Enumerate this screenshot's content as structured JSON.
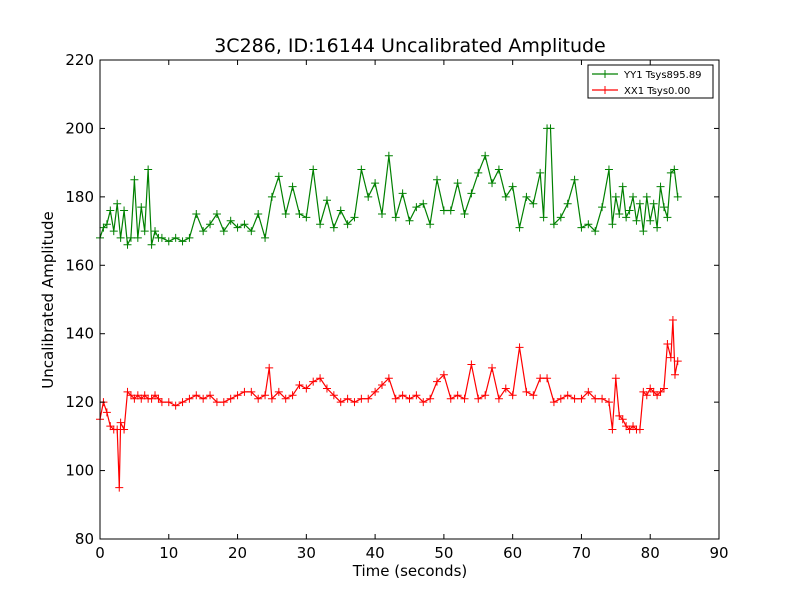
{
  "chart_data": {
    "type": "line",
    "title": "3C286, ID:16144 Uncalibrated Amplitude",
    "xlabel": "Time (seconds)",
    "ylabel": "Uncalibrated Amplitude",
    "xlim": [
      0,
      90
    ],
    "ylim": [
      80,
      220
    ],
    "xticks": [
      "0",
      "10",
      "20",
      "30",
      "40",
      "50",
      "60",
      "70",
      "80",
      "90"
    ],
    "yticks": [
      "80",
      "100",
      "120",
      "140",
      "160",
      "180",
      "200",
      "220"
    ],
    "grid": false,
    "legend_position": "top-right",
    "marker": "plus",
    "series": [
      {
        "name": "YY1 Tsys895.89",
        "color": "#008000",
        "x": [
          0.0,
          0.5,
          1.0,
          1.5,
          2.0,
          2.5,
          3.0,
          3.5,
          4.0,
          4.5,
          5.0,
          5.5,
          6.0,
          6.5,
          7.0,
          7.5,
          8.0,
          8.5,
          9.0,
          10.0,
          11.0,
          12.0,
          13.0,
          14.0,
          15.0,
          16.0,
          17.0,
          18.0,
          19.0,
          20.0,
          21.0,
          22.0,
          23.0,
          24.0,
          25.0,
          26.0,
          27.0,
          28.0,
          29.0,
          30.0,
          31.0,
          32.0,
          33.0,
          34.0,
          35.0,
          36.0,
          37.0,
          38.0,
          39.0,
          40.0,
          41.0,
          42.0,
          43.0,
          44.0,
          45.0,
          46.0,
          47.0,
          48.0,
          49.0,
          50.0,
          51.0,
          52.0,
          53.0,
          54.0,
          55.0,
          56.0,
          57.0,
          58.0,
          59.0,
          60.0,
          61.0,
          62.0,
          63.0,
          64.0,
          64.5,
          65.0,
          65.5,
          66.0,
          67.0,
          68.0,
          69.0,
          70.0,
          71.0,
          72.0,
          73.0,
          74.0,
          74.5,
          75.0,
          75.5,
          76.0,
          76.5,
          77.0,
          77.5,
          78.0,
          78.5,
          79.0,
          79.5,
          80.0,
          80.5,
          81.0,
          81.5,
          82.0,
          82.5,
          83.0,
          83.5,
          84.0
        ],
        "values": [
          168,
          171,
          172,
          176,
          170,
          178,
          168,
          176,
          166,
          168,
          185,
          168,
          177,
          170,
          188,
          166,
          170,
          168,
          168,
          167,
          168,
          167,
          168,
          175,
          170,
          172,
          175,
          170,
          173,
          171,
          172,
          170,
          175,
          168,
          180,
          186,
          175,
          183,
          175,
          174,
          188,
          172,
          179,
          171,
          176,
          172,
          174,
          188,
          180,
          184,
          175,
          192,
          174,
          181,
          173,
          177,
          178,
          172,
          185,
          176,
          176,
          184,
          175,
          181,
          187,
          192,
          184,
          188,
          180,
          183,
          171,
          180,
          178,
          187,
          174,
          200,
          200,
          172,
          174,
          178,
          185,
          171,
          172,
          170,
          177,
          188,
          172,
          180,
          175,
          183,
          174,
          176,
          180,
          173,
          178,
          170,
          180,
          173,
          178,
          171,
          183,
          177,
          174,
          187,
          188,
          180
        ]
      },
      {
        "name": "XX1 Tsys0.00",
        "color": "#ff0000",
        "x": [
          0.0,
          0.5,
          1.0,
          1.5,
          2.0,
          2.5,
          2.8,
          3.0,
          3.5,
          4.0,
          4.5,
          5.0,
          5.5,
          6.0,
          6.5,
          7.0,
          7.5,
          8.0,
          8.5,
          9.0,
          10.0,
          11.0,
          12.0,
          13.0,
          14.0,
          15.0,
          16.0,
          17.0,
          18.0,
          19.0,
          20.0,
          21.0,
          22.0,
          23.0,
          24.0,
          24.6,
          25.0,
          26.0,
          27.0,
          28.0,
          29.0,
          30.0,
          31.0,
          32.0,
          33.0,
          34.0,
          35.0,
          36.0,
          37.0,
          38.0,
          39.0,
          40.0,
          41.0,
          42.0,
          43.0,
          44.0,
          45.0,
          46.0,
          47.0,
          48.0,
          49.0,
          50.0,
          51.0,
          52.0,
          53.0,
          54.0,
          55.0,
          56.0,
          57.0,
          58.0,
          59.0,
          60.0,
          61.0,
          62.0,
          63.0,
          64.0,
          65.0,
          66.0,
          67.0,
          68.0,
          69.0,
          70.0,
          71.0,
          72.0,
          73.0,
          74.0,
          74.5,
          75.0,
          75.5,
          76.0,
          76.5,
          77.0,
          77.5,
          78.0,
          78.5,
          79.0,
          79.5,
          80.0,
          80.5,
          81.0,
          81.5,
          82.0,
          82.5,
          83.0,
          83.3,
          83.6,
          84.0
        ],
        "values": [
          115,
          120,
          117,
          113,
          112,
          112,
          95,
          114,
          112,
          123,
          122,
          121,
          122,
          121,
          122,
          121,
          121,
          122,
          121,
          120,
          120,
          119,
          120,
          121,
          122,
          121,
          122,
          120,
          120,
          121,
          122,
          123,
          123,
          121,
          122,
          130,
          121,
          123,
          121,
          122,
          125,
          124,
          126,
          127,
          124,
          122,
          120,
          121,
          120,
          121,
          121,
          123,
          125,
          127,
          121,
          122,
          121,
          122,
          120,
          121,
          126,
          128,
          121,
          122,
          121,
          131,
          121,
          122,
          130,
          121,
          124,
          122,
          136,
          123,
          122,
          127,
          127,
          120,
          121,
          122,
          121,
          121,
          123,
          121,
          121,
          120,
          112,
          127,
          116,
          115,
          113,
          112,
          113,
          112,
          112,
          123,
          122,
          124,
          123,
          122,
          123,
          124,
          137,
          133,
          144,
          128,
          132
        ]
      }
    ]
  }
}
